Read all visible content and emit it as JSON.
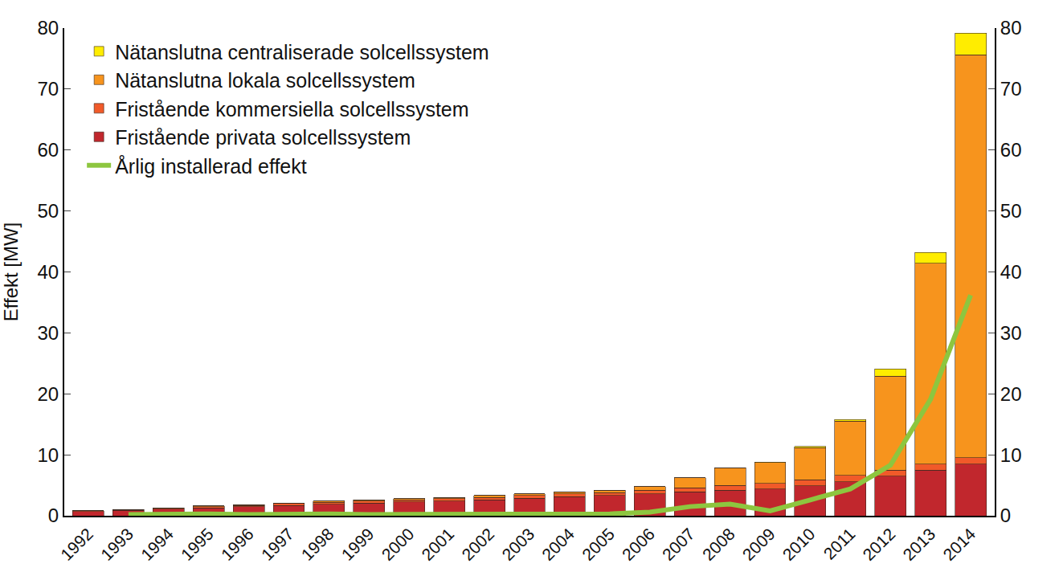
{
  "chart_data": {
    "type": "bar",
    "stacked": true,
    "y_label": "Effekt [MW]",
    "categories": [
      "1992",
      "1993",
      "1994",
      "1995",
      "1996",
      "1997",
      "1998",
      "1999",
      "2000",
      "2001",
      "2002",
      "2003",
      "2004",
      "2005",
      "2006",
      "2007",
      "2008",
      "2009",
      "2010",
      "2011",
      "2012",
      "2013",
      "2014"
    ],
    "series": [
      {
        "name": "Fristående privata solcellssystem",
        "color": "#c1272d",
        "values": [
          0.7,
          0.9,
          1.1,
          1.3,
          1.5,
          1.7,
          1.9,
          2.1,
          2.3,
          2.4,
          2.6,
          2.9,
          3.1,
          3.3,
          3.6,
          3.9,
          4.2,
          4.4,
          4.9,
          5.6,
          6.5,
          7.5,
          8.5
        ]
      },
      {
        "name": "Fristående kommersiella solcellssystem",
        "color": "#f15a29",
        "values": [
          0.1,
          0.1,
          0.1,
          0.2,
          0.2,
          0.3,
          0.3,
          0.3,
          0.3,
          0.4,
          0.4,
          0.4,
          0.5,
          0.5,
          0.6,
          0.7,
          0.8,
          0.9,
          1.0,
          1.0,
          1.0,
          1.0,
          1.0
        ]
      },
      {
        "name": "Nätanslutna lokala solcellssystem",
        "color": "#f7941d",
        "values": [
          0,
          0,
          0.1,
          0.1,
          0.1,
          0.1,
          0.2,
          0.2,
          0.2,
          0.2,
          0.3,
          0.3,
          0.3,
          0.4,
          0.6,
          1.6,
          2.9,
          3.4,
          5.3,
          8.9,
          15.4,
          32.9,
          66.1
        ]
      },
      {
        "name": "Nätanslutna centraliserade solcellssystem",
        "color": "#ffed00",
        "values": [
          0,
          0,
          0,
          0,
          0,
          0,
          0,
          0,
          0,
          0,
          0,
          0,
          0,
          0,
          0,
          0,
          0,
          0.1,
          0.2,
          0.3,
          1.2,
          1.8,
          3.6
        ]
      },
      {
        "name": "Årlig installerad effekt",
        "color": "#8dc63f",
        "type": "line",
        "axis": "y2",
        "values": [
          null,
          0.2,
          0.3,
          0.3,
          0.2,
          0.3,
          0.3,
          0.2,
          0.2,
          0.2,
          0.3,
          0.3,
          0.3,
          0.3,
          0.6,
          1.5,
          1.9,
          0.8,
          2.6,
          4.4,
          8.3,
          19.1,
          36.2
        ]
      }
    ],
    "ylim": [
      0,
      80
    ],
    "yticks": [
      0,
      10,
      20,
      30,
      40,
      50,
      60,
      70,
      80
    ],
    "y2lim": [
      0,
      80
    ],
    "y2ticks": [
      0,
      10,
      20,
      30,
      40,
      50,
      60,
      70,
      80
    ],
    "legend": "top-left",
    "grid": false
  }
}
